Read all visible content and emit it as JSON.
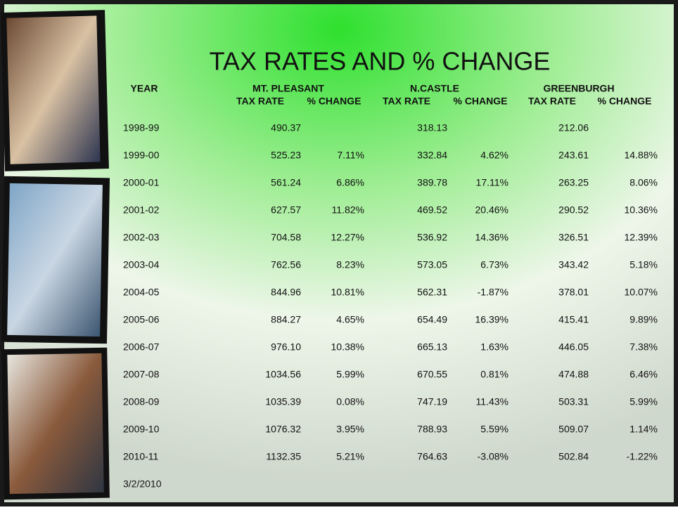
{
  "title": "TAX RATES AND % CHANGE",
  "table": {
    "year_header": "YEAR",
    "groups": [
      {
        "name": "MT. PLEASANT",
        "rate_header": "TAX RATE",
        "change_header": "% CHANGE"
      },
      {
        "name": "N.CASTLE",
        "rate_header": "TAX RATE",
        "change_header": "% CHANGE"
      },
      {
        "name": "GREENBURGH",
        "rate_header": "TAX RATE",
        "change_header": "% CHANGE"
      }
    ],
    "rows": [
      {
        "year": "1998-99",
        "values": [
          [
            "490.37"
          ],
          [
            "318.13"
          ],
          [
            "212.06"
          ]
        ]
      },
      {
        "year": "1999-00",
        "values": [
          [
            "525.23",
            "7.11%"
          ],
          [
            "332.84",
            "4.62%"
          ],
          [
            "243.61",
            "14.88%"
          ]
        ]
      },
      {
        "year": "2000-01",
        "values": [
          [
            "561.24",
            "6.86%"
          ],
          [
            "389.78",
            "17.11%"
          ],
          [
            "263.25",
            "8.06%"
          ]
        ]
      },
      {
        "year": "2001-02",
        "values": [
          [
            "627.57",
            "11.82%"
          ],
          [
            "469.52",
            "20.46%"
          ],
          [
            "290.52",
            "10.36%"
          ]
        ]
      },
      {
        "year": "2002-03",
        "values": [
          [
            "704.58",
            "12.27%"
          ],
          [
            "536.92",
            "14.36%"
          ],
          [
            "326.51",
            "12.39%"
          ]
        ]
      },
      {
        "year": "2003-04",
        "values": [
          [
            "762.56",
            "8.23%"
          ],
          [
            "573.05",
            "6.73%"
          ],
          [
            "343.42",
            "5.18%"
          ]
        ]
      },
      {
        "year": "2004-05",
        "values": [
          [
            "844.96",
            "10.81%"
          ],
          [
            "562.31",
            "-1.87%"
          ],
          [
            "378.01",
            "10.07%"
          ]
        ]
      },
      {
        "year": "2005-06",
        "values": [
          [
            "884.27",
            "4.65%"
          ],
          [
            "654.49",
            "16.39%"
          ],
          [
            "415.41",
            "9.89%"
          ]
        ]
      },
      {
        "year": "2006-07",
        "values": [
          [
            "976.10",
            "10.38%"
          ],
          [
            "665.13",
            "1.63%"
          ],
          [
            "446.05",
            "7.38%"
          ]
        ]
      },
      {
        "year": "2007-08",
        "values": [
          [
            "1034.56",
            "5.99%"
          ],
          [
            "670.55",
            "0.81%"
          ],
          [
            "474.88",
            "6.46%"
          ]
        ]
      },
      {
        "year": "2008-09",
        "values": [
          [
            "1035.39",
            "0.08%"
          ],
          [
            "747.19",
            "11.43%"
          ],
          [
            "503.31",
            "5.99%"
          ]
        ]
      },
      {
        "year": "2009-10",
        "values": [
          [
            "1076.32",
            "3.95%"
          ],
          [
            "788.93",
            "5.59%"
          ],
          [
            "509.07",
            "1.14%"
          ]
        ]
      },
      {
        "year": "2010-11",
        "values": [
          [
            "1132.35",
            "5.21%"
          ],
          [
            "764.63",
            "-3.08%"
          ],
          [
            "502.84",
            "-1.22%"
          ]
        ]
      }
    ]
  },
  "footer": "3/2/2010"
}
